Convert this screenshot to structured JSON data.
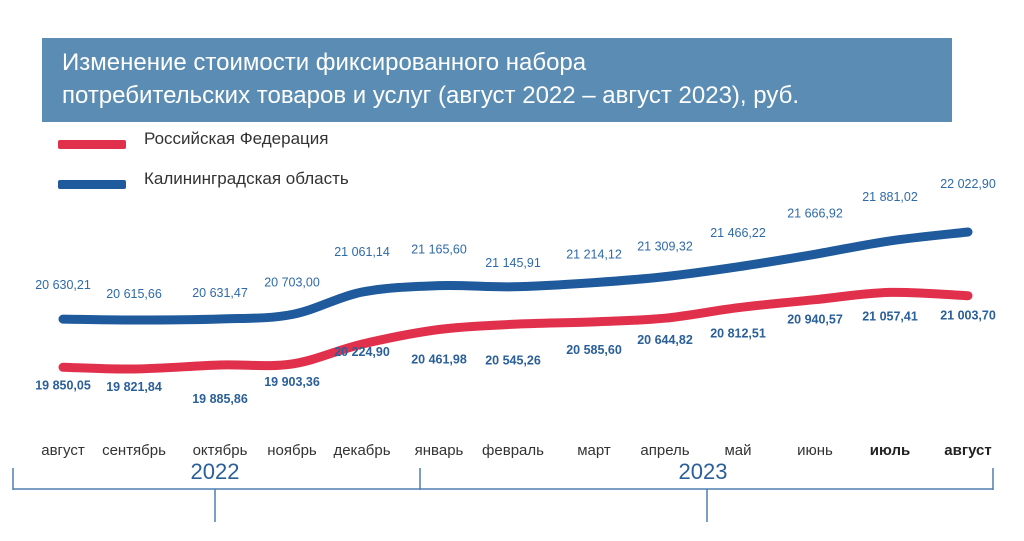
{
  "title": {
    "line1": "Изменение стоимости фиксированного набора",
    "line2": "потребительских товаров и услуг (август 2022 – август 2023), руб."
  },
  "colors": {
    "title_bg": "#5b8db4",
    "russia": "#e0304c",
    "kaliningrad": "#1e5a9c"
  },
  "chart_data": {
    "type": "line",
    "categories": [
      "август",
      "сентябрь",
      "октябрь",
      "ноябрь",
      "декабрь",
      "январь",
      "февраль",
      "март",
      "апрель",
      "май",
      "июнь",
      "июль",
      "август"
    ],
    "years": [
      {
        "label": "2022",
        "from": 0,
        "to": 4
      },
      {
        "label": "2023",
        "from": 5,
        "to": 12
      }
    ],
    "series": [
      {
        "name": "Российская Федерация",
        "color": "#e0304c",
        "values": [
          19850.05,
          19821.84,
          19885.86,
          19903.36,
          20224.9,
          20461.98,
          20545.26,
          20585.6,
          20644.82,
          20812.51,
          20940.57,
          21057.41,
          21003.7
        ],
        "labels": [
          "19 850,05",
          "19 821,84",
          "19 885,86",
          "19 903,36",
          "20 224,90",
          "20 461,98",
          "20 545,26",
          "20 585,60",
          "20 644,82",
          "20 812,51",
          "20 940,57",
          "21 057,41",
          "21 003,70"
        ]
      },
      {
        "name": "Калининградская область",
        "color": "#1e5a9c",
        "values": [
          20630.21,
          20615.66,
          20631.47,
          20703.0,
          21061.14,
          21165.6,
          21145.91,
          21214.12,
          21309.32,
          21466.22,
          21666.92,
          21881.02,
          22022.9
        ],
        "labels": [
          "20 630,21",
          "20 615,66",
          "20 631,47",
          "20 703,00",
          "21 061,14",
          "21 165,60",
          "21 145,91",
          "21 214,12",
          "21 309,32",
          "21 466,22",
          "21 666,92",
          "21 881,02",
          "22 022,90"
        ]
      }
    ],
    "legend": "top-left",
    "grid": false
  }
}
